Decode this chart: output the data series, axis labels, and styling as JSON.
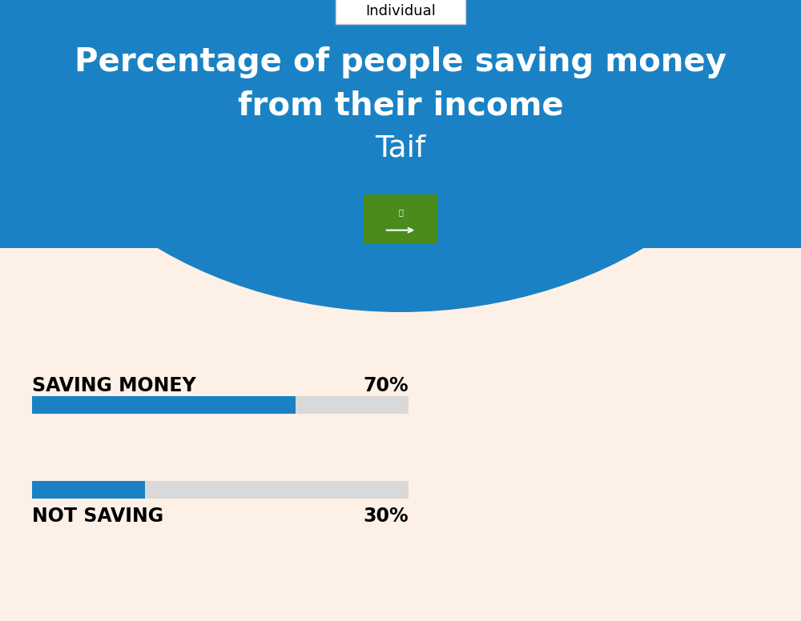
{
  "title_line1": "Percentage of people saving money",
  "title_line2": "from their income",
  "city": "Taif",
  "tab_label": "Individual",
  "saving_label": "SAVING MONEY",
  "saving_value": 70,
  "saving_pct_label": "70%",
  "not_saving_label": "NOT SAVING",
  "not_saving_value": 30,
  "not_saving_pct_label": "30%",
  "header_blue": "#1a82c4",
  "bar_blue": "#1a82c4",
  "bar_grey": "#d9d9d9",
  "background_cream": "#fdf0e6",
  "flag_green": "#4a8c1c",
  "figure_width": 10.0,
  "figure_height": 7.76
}
